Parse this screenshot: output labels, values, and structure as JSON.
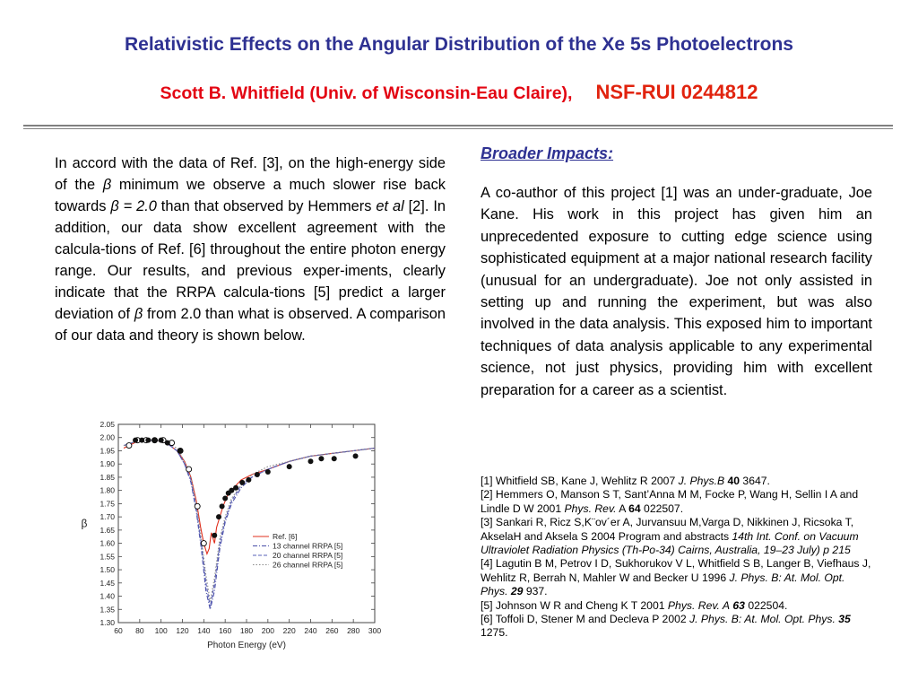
{
  "header": {
    "title": "Relativistic Effects on the Angular Distribution of  the Xe 5s Photoelectrons",
    "author": "Scott B. Whitfield (Univ. of Wisconsin-Eau Claire),",
    "grant": "NSF-RUI 0244812"
  },
  "left": {
    "p1": "In accord with the data of Ref. [3], on the high-energy side of the ",
    "beta1": "β",
    "p2": " minimum we observe a much slower rise back towards ",
    "beta2": "β = 2.0",
    "p3": " than that observed by Hemmers ",
    "etal": "et al",
    "p4": " [2]. In addition, our data show excellent agreement with the calcula-tions of Ref. [6] throughout the entire photon energy range. Our results, and previous exper-iments, clearly indicate that the RRPA calcula-tions [5] predict a larger deviation of ",
    "beta3": "β",
    "p5": " from 2.0 than what is observed. A comparison of our data and theory is shown below."
  },
  "right": {
    "heading": "Broader Impacts:",
    "text": "A co-author of this project [1] was an under-graduate, Joe Kane.  His work in this project has given him an unprecedented exposure to cutting edge science using sophisticated equipment at a major national research facility (unusual for an undergraduate). Joe not only assisted in setting up and running the experiment, but was also involved in the data analysis. This exposed him to important techniques of data analysis applicable to any experimental science, not just physics, providing him with excellent preparation for a career as a scientist."
  },
  "refs": {
    "r1a": "[1] Whitfield SB, Kane J, Wehlitz R 2007 ",
    "r1j": "J. Phys.B",
    "r1v": "40",
    "r1e": " 3647.",
    "r2a": "[2] Hemmers O, Manson S T, Sant’Anna M M, Focke P, Wang H, Sellin I A and Lindle D W 2001 ",
    "r2j": "Phys. Rev.",
    "r2s": " A ",
    "r2v": "64",
    "r2e": " 022507.",
    "r3a": "[3] Sankari R, Ricz S,K¨ov´er A, Jurvansuu M,Varga D, Nikkinen J, Ricsoka T, AkselaH and Aksela S 2004 Program and abstracts ",
    "r3j": "14th Int. Conf. on Vacuum Ultraviolet Radiation Physics (Th-Po-34) Cairns, Australia, 19–23 July) p 215",
    "r4a": "[4] Lagutin B M, Petrov I D, Sukhorukov V L, Whitfield S B, Langer B, Viefhaus J, Wehlitz R, Berrah N, Mahler W and Becker U 1996 ",
    "r4j": "J. Phys. B: At. Mol. Opt. Phys.",
    "r4v": "29",
    "r4e": " 937.",
    "r5a": "[5] Johnson W R and Cheng K T 2001 ",
    "r5j": "Phys. Rev. A",
    "r5v": "63",
    "r5e": " 022504.",
    "r6a": "[6] Toffoli D, Stener M and Decleva P 2002 ",
    "r6j": "J. Phys. B: At. Mol. Opt. Phys.",
    "r6v": "35",
    "r6e": " 1275."
  },
  "chart_data": {
    "type": "line",
    "xlabel": "Photon Energy (eV)",
    "ylabel": "β",
    "xlim": [
      60,
      300
    ],
    "ylim": [
      1.3,
      2.05
    ],
    "xticks": [
      60,
      80,
      100,
      120,
      140,
      160,
      180,
      200,
      220,
      240,
      260,
      280,
      300
    ],
    "yticks": [
      1.3,
      1.35,
      1.4,
      1.45,
      1.5,
      1.55,
      1.6,
      1.65,
      1.7,
      1.75,
      1.8,
      1.85,
      1.9,
      1.95,
      2.0,
      2.05
    ],
    "xtick_labels": [
      "60",
      "80",
      "100",
      "120",
      "140",
      "160",
      "180",
      "200",
      "220",
      "240",
      "260",
      "280",
      "300"
    ],
    "ytick_labels": [
      "1.30",
      "1.35",
      "1.40",
      "1.45",
      "1.50",
      "1.55",
      "1.60",
      "1.65",
      "1.70",
      "1.75",
      "1.80",
      "1.85",
      "1.90",
      "1.95",
      "2.00",
      "2.05"
    ],
    "legend_position": "bottom-right",
    "series": [
      {
        "name": "Ref. [6]",
        "color": "#e0301e",
        "style": "solid",
        "x": [
          65,
          80,
          95,
          105,
          115,
          122,
          128,
          133,
          137,
          140,
          143,
          145,
          147,
          150,
          152,
          155,
          158,
          162,
          168,
          175,
          185,
          200,
          220,
          240,
          260,
          280,
          300
        ],
        "y": [
          1.96,
          1.99,
          1.99,
          1.98,
          1.95,
          1.91,
          1.85,
          1.76,
          1.66,
          1.6,
          1.56,
          1.58,
          1.64,
          1.6,
          1.66,
          1.7,
          1.74,
          1.78,
          1.81,
          1.84,
          1.86,
          1.88,
          1.91,
          1.93,
          1.94,
          1.95,
          1.96
        ]
      },
      {
        "name": "13 channel RRPA [5]",
        "color": "#4a4fa8",
        "style": "dashdot",
        "x": [
          65,
          80,
          95,
          105,
          115,
          122,
          128,
          133,
          138,
          142,
          146,
          150,
          155,
          160,
          166,
          175,
          185,
          200,
          220,
          240,
          260,
          280,
          300
        ],
        "y": [
          1.97,
          1.99,
          1.99,
          1.98,
          1.95,
          1.9,
          1.83,
          1.72,
          1.57,
          1.42,
          1.35,
          1.42,
          1.58,
          1.68,
          1.75,
          1.81,
          1.85,
          1.88,
          1.91,
          1.93,
          1.94,
          1.95,
          1.96
        ]
      },
      {
        "name": "20 channel RRPA [5]",
        "color": "#5a60b8",
        "style": "dashed",
        "x": [
          65,
          80,
          95,
          105,
          115,
          122,
          128,
          133,
          138,
          142,
          146,
          150,
          155,
          160,
          166,
          175,
          185,
          200,
          220,
          240,
          260,
          280,
          300
        ],
        "y": [
          1.97,
          1.99,
          1.99,
          1.98,
          1.95,
          1.9,
          1.84,
          1.73,
          1.59,
          1.45,
          1.36,
          1.45,
          1.6,
          1.69,
          1.76,
          1.82,
          1.85,
          1.88,
          1.91,
          1.93,
          1.94,
          1.95,
          1.96
        ]
      },
      {
        "name": "26 channel RRPA [5]",
        "color": "#8a8a8a",
        "style": "dotted",
        "x": [
          65,
          80,
          95,
          105,
          115,
          122,
          128,
          133,
          138,
          142,
          146,
          150,
          155,
          160,
          166,
          175,
          185,
          200,
          220,
          240,
          260,
          280,
          300
        ],
        "y": [
          1.97,
          1.99,
          1.99,
          1.98,
          1.96,
          1.91,
          1.85,
          1.75,
          1.61,
          1.48,
          1.38,
          1.47,
          1.62,
          1.7,
          1.77,
          1.82,
          1.86,
          1.89,
          1.91,
          1.93,
          1.94,
          1.95,
          1.96
        ]
      }
    ],
    "points_filled": {
      "x": [
        76,
        82,
        88,
        94,
        100,
        106,
        118,
        150,
        154,
        157,
        160,
        163,
        166,
        170,
        176,
        182,
        190,
        200,
        220,
        240,
        250,
        262,
        282
      ],
      "y": [
        1.99,
        1.99,
        1.99,
        1.99,
        1.99,
        1.98,
        1.95,
        1.63,
        1.7,
        1.74,
        1.77,
        1.79,
        1.8,
        1.81,
        1.83,
        1.84,
        1.86,
        1.87,
        1.89,
        1.91,
        1.92,
        1.92,
        1.93
      ]
    },
    "points_open": {
      "x": [
        70,
        78,
        86,
        94,
        102,
        110,
        118,
        126,
        134,
        140
      ],
      "y": [
        1.97,
        1.99,
        1.99,
        1.99,
        1.99,
        1.98,
        1.95,
        1.88,
        1.74,
        1.6
      ]
    }
  }
}
